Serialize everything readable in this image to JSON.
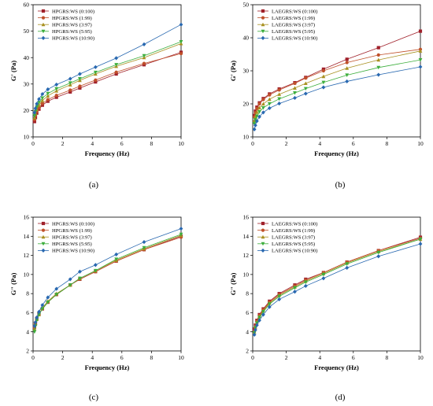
{
  "chart_data": [
    {
      "type": "line",
      "panel_label": "(a)",
      "xlabel": "Frequency (Hz)",
      "ylabel": "G' (Pa)",
      "xlim": [
        0,
        10
      ],
      "ylim": [
        10,
        60
      ],
      "xticks": [
        0,
        2,
        4,
        6,
        8,
        10
      ],
      "yticks": [
        10,
        20,
        30,
        40,
        50,
        60
      ],
      "grid": false,
      "legend_position": "top-left",
      "x": [
        0.1,
        0.16,
        0.25,
        0.4,
        0.63,
        1.0,
        1.58,
        2.51,
        3.16,
        4.22,
        5.62,
        7.5,
        10
      ],
      "series": [
        {
          "name": "HPGRS:WS (0:100)",
          "color": "#a0202a",
          "marker": "square",
          "values": [
            15.8,
            17.3,
            19.0,
            20.5,
            22.0,
            23.5,
            25.0,
            27.0,
            28.5,
            30.8,
            33.8,
            37.3,
            42.0
          ]
        },
        {
          "name": "HPGRS:WS (1:99)",
          "color": "#c0502a",
          "marker": "circle",
          "values": [
            16.5,
            18.0,
            19.6,
            21.0,
            22.6,
            24.1,
            25.7,
            27.7,
            29.2,
            31.5,
            34.5,
            37.8,
            41.5
          ]
        },
        {
          "name": "HPGRS:WS (3:97)",
          "color": "#a89020",
          "marker": "triangle-up",
          "values": [
            17.3,
            18.8,
            20.4,
            22.0,
            23.8,
            25.5,
            27.4,
            29.7,
            31.4,
            33.8,
            36.7,
            40.0,
            45.3
          ]
        },
        {
          "name": "HPGRS:WS (5:95)",
          "color": "#3cae3c",
          "marker": "triangle-down",
          "values": [
            18.0,
            19.6,
            21.3,
            23.0,
            24.7,
            26.4,
            28.2,
            30.4,
            32.0,
            34.4,
            37.3,
            40.7,
            46.0
          ]
        },
        {
          "name": "HPGRS:WS (10:90)",
          "color": "#2868b0",
          "marker": "diamond",
          "values": [
            19.2,
            20.8,
            22.5,
            24.3,
            26.2,
            28.0,
            29.8,
            32.0,
            33.8,
            36.4,
            39.8,
            45.0,
            52.5
          ]
        }
      ]
    },
    {
      "type": "line",
      "panel_label": "(b)",
      "xlabel": "Frequency (Hz)",
      "ylabel": "G' (Pa)",
      "xlim": [
        0,
        10
      ],
      "ylim": [
        10,
        50
      ],
      "xticks": [
        0,
        2,
        4,
        6,
        8,
        10
      ],
      "yticks": [
        10,
        20,
        30,
        40,
        50
      ],
      "grid": false,
      "legend_position": "top-left",
      "x": [
        0.1,
        0.16,
        0.25,
        0.4,
        0.63,
        1.0,
        1.58,
        2.51,
        3.16,
        4.22,
        5.62,
        7.5,
        10
      ],
      "series": [
        {
          "name": "LAEGRS:WS (0:100)",
          "color": "#a0202a",
          "marker": "square",
          "values": [
            16.5,
            17.8,
            19.0,
            20.3,
            21.6,
            23.0,
            24.5,
            26.4,
            28.0,
            30.5,
            33.5,
            37.0,
            42.0
          ]
        },
        {
          "name": "LAEGRS:WS (1:99)",
          "color": "#c0502a",
          "marker": "circle",
          "values": [
            16.0,
            17.3,
            18.6,
            20.0,
            21.3,
            22.7,
            24.2,
            26.2,
            27.8,
            30.0,
            32.5,
            34.8,
            36.5
          ]
        },
        {
          "name": "LAEGRS:WS (3:97)",
          "color": "#a89020",
          "marker": "triangle-up",
          "values": [
            15.0,
            16.2,
            17.5,
            18.8,
            20.0,
            21.4,
            22.9,
            24.8,
            26.2,
            28.3,
            30.8,
            33.3,
            36.0
          ]
        },
        {
          "name": "LAEGRS:WS (5:95)",
          "color": "#3cae3c",
          "marker": "triangle-down",
          "values": [
            14.0,
            15.2,
            16.3,
            17.6,
            18.8,
            20.0,
            21.5,
            23.3,
            24.6,
            26.5,
            28.7,
            31.0,
            33.3
          ]
        },
        {
          "name": "LAEGRS:WS (10:90)",
          "color": "#2868b0",
          "marker": "diamond",
          "values": [
            12.3,
            13.5,
            14.8,
            16.1,
            17.4,
            18.7,
            20.1,
            21.8,
            23.1,
            25.0,
            26.8,
            28.8,
            31.2
          ]
        }
      ]
    },
    {
      "type": "line",
      "panel_label": "(c)",
      "xlabel": "Frequency (Hz)",
      "ylabel": "G\" (Pa)",
      "xlim": [
        0,
        10
      ],
      "ylim": [
        2,
        16
      ],
      "xticks": [
        0,
        2,
        4,
        6,
        8,
        10
      ],
      "yticks": [
        2,
        4,
        6,
        8,
        10,
        12,
        14,
        16
      ],
      "grid": false,
      "legend_position": "top-left",
      "x": [
        0.1,
        0.16,
        0.25,
        0.4,
        0.63,
        1.0,
        1.58,
        2.51,
        3.16,
        4.22,
        5.62,
        7.5,
        10
      ],
      "series": [
        {
          "name": "HPGRS:WS (0:100)",
          "color": "#a0202a",
          "marker": "square",
          "values": [
            4.5,
            4.9,
            5.4,
            5.9,
            6.4,
            7.1,
            7.9,
            8.9,
            9.5,
            10.3,
            11.4,
            12.6,
            14.0
          ]
        },
        {
          "name": "HPGRS:WS (1:99)",
          "color": "#c0502a",
          "marker": "circle",
          "values": [
            4.4,
            4.8,
            5.3,
            5.8,
            6.4,
            7.1,
            7.9,
            8.9,
            9.5,
            10.3,
            11.4,
            12.6,
            13.9
          ]
        },
        {
          "name": "HPGRS:WS (3:97)",
          "color": "#a89020",
          "marker": "triangle-up",
          "values": [
            4.3,
            4.8,
            5.3,
            5.8,
            6.5,
            7.2,
            8.0,
            8.9,
            9.6,
            10.4,
            11.5,
            12.7,
            14.1
          ]
        },
        {
          "name": "HPGRS:WS (5:95)",
          "color": "#3cae3c",
          "marker": "triangle-down",
          "values": [
            4.0,
            4.6,
            5.2,
            5.8,
            6.4,
            7.1,
            7.9,
            8.9,
            9.6,
            10.4,
            11.6,
            12.8,
            14.2
          ]
        },
        {
          "name": "HPGRS:WS (10:90)",
          "color": "#2868b0",
          "marker": "diamond",
          "values": [
            4.6,
            5.0,
            5.5,
            6.1,
            6.8,
            7.6,
            8.5,
            9.5,
            10.3,
            11.0,
            12.1,
            13.4,
            14.8
          ]
        }
      ]
    },
    {
      "type": "line",
      "panel_label": "(d)",
      "xlabel": "Frequency (Hz)",
      "ylabel": "G\" (Pa)",
      "xlim": [
        0,
        10
      ],
      "ylim": [
        2,
        16
      ],
      "xticks": [
        0,
        2,
        4,
        6,
        8,
        10
      ],
      "yticks": [
        2,
        4,
        6,
        8,
        10,
        12,
        14,
        16
      ],
      "grid": false,
      "legend_position": "top-left",
      "x": [
        0.1,
        0.16,
        0.25,
        0.4,
        0.63,
        1.0,
        1.58,
        2.51,
        3.16,
        4.22,
        5.62,
        7.5,
        10
      ],
      "series": [
        {
          "name": "LAEGRS:WS (0:100)",
          "color": "#a0202a",
          "marker": "square",
          "values": [
            4.3,
            4.7,
            5.2,
            5.8,
            6.4,
            7.2,
            8.0,
            8.9,
            9.5,
            10.2,
            11.3,
            12.5,
            13.9
          ]
        },
        {
          "name": "LAEGRS:WS (1:99)",
          "color": "#c0502a",
          "marker": "circle",
          "values": [
            4.1,
            4.6,
            5.1,
            5.7,
            6.3,
            7.1,
            7.9,
            8.8,
            9.4,
            10.2,
            11.3,
            12.5,
            13.8
          ]
        },
        {
          "name": "LAEGRS:WS (3:97)",
          "color": "#a89020",
          "marker": "triangle-up",
          "values": [
            4.0,
            4.5,
            5.0,
            5.6,
            6.2,
            7.0,
            7.8,
            8.7,
            9.3,
            10.1,
            11.2,
            12.4,
            13.7
          ]
        },
        {
          "name": "LAEGRS:WS (5:95)",
          "color": "#3cae3c",
          "marker": "triangle-down",
          "values": [
            3.9,
            4.4,
            4.9,
            5.5,
            6.1,
            6.9,
            7.7,
            8.6,
            9.2,
            10.0,
            11.1,
            12.3,
            13.7
          ]
        },
        {
          "name": "LAEGRS:WS (10:90)",
          "color": "#2868b0",
          "marker": "diamond",
          "values": [
            3.7,
            4.2,
            4.7,
            5.2,
            5.8,
            6.6,
            7.4,
            8.2,
            8.8,
            9.6,
            10.7,
            11.9,
            13.2
          ]
        }
      ]
    }
  ]
}
